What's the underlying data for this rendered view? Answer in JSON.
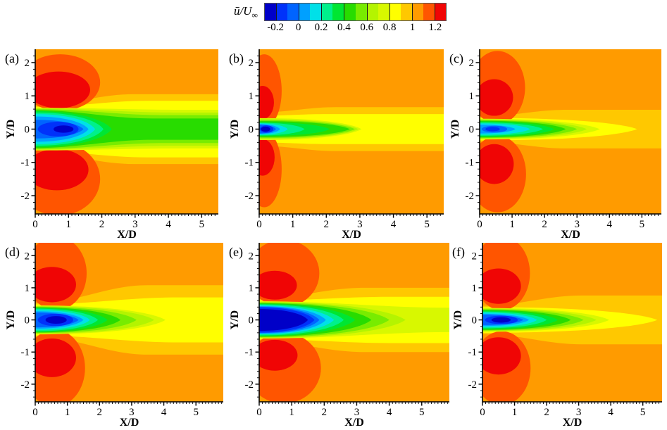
{
  "chart_data": {
    "type": "contour",
    "description_label": "mean streamwise velocity contour panels",
    "colorbar": {
      "label_main": "ū/U",
      "label_sub": "∞",
      "range": [
        -0.3,
        1.3
      ],
      "tick_values": [
        -0.2,
        0,
        0.2,
        0.4,
        0.6,
        0.8,
        1,
        1.2
      ],
      "tick_labels": [
        "-0.2",
        "0",
        "0.2",
        "0.4",
        "0.6",
        "0.8",
        "1",
        "1.2"
      ],
      "colors": [
        "#0000c8",
        "#0032fa",
        "#0064ff",
        "#00a0ff",
        "#00e0e8",
        "#00f08c",
        "#00e632",
        "#28dc00",
        "#78ec00",
        "#b4f400",
        "#d8f800",
        "#ffff00",
        "#ffc800",
        "#ff9b00",
        "#ff5500",
        "#f00505"
      ]
    },
    "axes": {
      "xlabel": "X/D",
      "ylabel": "Y/D",
      "xticks": [
        0,
        1,
        2,
        3,
        4,
        5
      ],
      "yticks": [
        -2,
        -1,
        0,
        1,
        2
      ],
      "yrange": [
        -2.55,
        2.4
      ],
      "x_minor_step": 0.1,
      "y_minor_step": 0.2
    },
    "panels": [
      {
        "label": "(a)",
        "xmax": 5.5,
        "blobs": [
          [
            14,
            0.75,
            1.4,
            1.2,
            0.85
          ],
          [
            14,
            0.7,
            -1.5,
            1.25,
            1.1
          ],
          [
            15,
            0.7,
            1.18,
            0.95,
            0.55
          ],
          [
            15,
            0.65,
            -1.22,
            0.95,
            0.62
          ]
        ],
        "wake": [
          [
            12,
            0,
            0.72,
            2.2,
            1.05
          ],
          [
            11,
            0,
            0.66,
            2.5,
            0.85
          ],
          [
            10,
            0,
            0.64,
            3.3,
            0.58
          ],
          [
            9,
            0,
            0.62,
            3.1,
            0.5
          ],
          [
            8,
            0,
            0.6,
            2.9,
            0.42
          ],
          [
            7,
            0,
            0.57,
            2.6,
            0.32
          ],
          [
            6,
            0,
            0.54,
            2.3,
            null
          ],
          [
            5,
            0,
            0.5,
            2.05,
            null
          ],
          [
            4,
            0,
            0.45,
            1.8,
            null
          ],
          [
            3,
            0,
            0.38,
            1.6,
            null
          ],
          [
            2,
            0,
            0.28,
            1.45,
            null
          ],
          [
            1,
            0.08,
            0.22,
            1.3,
            null
          ],
          [
            0,
            0.55,
            0.11,
            1.15,
            null
          ]
        ]
      },
      {
        "label": "(b)",
        "xmax": 5.5,
        "blobs": [
          [
            14,
            0.15,
            1.15,
            0.52,
            1.1
          ],
          [
            14,
            0.15,
            -1.2,
            0.52,
            1.15
          ],
          [
            15,
            0.1,
            0.8,
            0.34,
            0.5
          ],
          [
            15,
            0.1,
            -0.85,
            0.36,
            0.55
          ]
        ],
        "wake": [
          [
            12,
            0,
            0.5,
            1.7,
            0.66
          ],
          [
            11,
            0,
            0.4,
            1.5,
            0.45
          ],
          [
            10,
            0,
            0.33,
            3.05,
            null
          ],
          [
            9,
            0,
            0.3,
            2.95,
            null
          ],
          [
            8,
            0,
            0.27,
            2.85,
            null
          ],
          [
            7,
            0,
            0.24,
            2.7,
            null
          ],
          [
            6,
            0,
            0.21,
            2.1,
            null
          ],
          [
            5,
            0,
            0.19,
            1.35,
            null
          ],
          [
            4,
            0,
            0.17,
            0.85,
            null
          ],
          [
            3,
            0,
            0.15,
            0.62,
            null
          ],
          [
            2,
            0,
            0.13,
            0.5,
            null
          ],
          [
            1,
            0.02,
            0.11,
            0.42,
            null
          ],
          [
            0,
            0.05,
            0.075,
            0.33,
            null
          ]
        ]
      },
      {
        "label": "(c)",
        "xmax": 5.6,
        "blobs": [
          [
            14,
            0.55,
            1.25,
            0.85,
            1.1
          ],
          [
            14,
            0.55,
            -1.35,
            0.88,
            1.15
          ],
          [
            15,
            0.45,
            0.95,
            0.58,
            0.55
          ],
          [
            15,
            0.45,
            -1.05,
            0.6,
            0.6
          ]
        ],
        "wake": [
          [
            12,
            0,
            0.38,
            2.0,
            0.58
          ],
          [
            11,
            0,
            0.34,
            4.85,
            null
          ],
          [
            10,
            0,
            0.31,
            3.7,
            null
          ],
          [
            9,
            0,
            0.29,
            3.3,
            null
          ],
          [
            8,
            0,
            0.27,
            3.0,
            null
          ],
          [
            7,
            0,
            0.25,
            2.65,
            null
          ],
          [
            6,
            0,
            0.23,
            2.3,
            null
          ],
          [
            5,
            0,
            0.2,
            1.95,
            null
          ],
          [
            4,
            0,
            0.17,
            1.55,
            null
          ],
          [
            3,
            0,
            0.13,
            1.1,
            null
          ],
          [
            2,
            0.06,
            0.1,
            0.85,
            null
          ],
          [
            1,
            0.18,
            0.065,
            0.62,
            null
          ]
        ]
      },
      {
        "label": "(d)",
        "xmax": 5.85,
        "blobs": [
          [
            14,
            0.65,
            1.45,
            0.95,
            1.15
          ],
          [
            14,
            0.6,
            -1.5,
            0.95,
            1.2
          ],
          [
            15,
            0.52,
            1.1,
            0.75,
            0.55
          ],
          [
            15,
            0.52,
            -1.18,
            0.75,
            0.6
          ]
        ],
        "wake": [
          [
            12,
            0,
            0.52,
            2.6,
            1.08
          ],
          [
            11,
            0,
            0.48,
            3.3,
            0.7
          ],
          [
            10,
            0,
            0.45,
            4.05,
            null
          ],
          [
            9,
            0,
            0.43,
            3.7,
            null
          ],
          [
            8,
            0,
            0.41,
            3.15,
            null
          ],
          [
            7,
            0,
            0.39,
            2.65,
            null
          ],
          [
            6,
            0,
            0.37,
            2.25,
            null
          ],
          [
            5,
            0,
            0.35,
            1.95,
            null
          ],
          [
            4,
            0,
            0.31,
            1.7,
            null
          ],
          [
            3,
            0,
            0.27,
            1.5,
            null
          ],
          [
            2,
            0,
            0.23,
            1.35,
            null
          ],
          [
            1,
            0.08,
            0.19,
            1.18,
            null
          ],
          [
            0,
            0.32,
            0.12,
            0.98,
            null
          ]
        ]
      },
      {
        "label": "(e)",
        "xmax": 5.85,
        "blobs": [
          [
            14,
            0.75,
            1.45,
            1.1,
            1.05
          ],
          [
            14,
            0.75,
            -1.5,
            1.15,
            1.1
          ],
          [
            15,
            0.48,
            1.08,
            0.68,
            0.45
          ],
          [
            15,
            0.48,
            -1.1,
            0.7,
            0.48
          ]
        ],
        "wake": [
          [
            12,
            0,
            0.66,
            2.4,
            1.0
          ],
          [
            11,
            0,
            0.6,
            3.0,
            0.72
          ],
          [
            10,
            0,
            0.58,
            4.5,
            0.38
          ],
          [
            9,
            0,
            0.56,
            4.5,
            null
          ],
          [
            8,
            0,
            0.54,
            4.0,
            null
          ],
          [
            7,
            0,
            0.52,
            3.45,
            null
          ],
          [
            6,
            0,
            0.5,
            2.95,
            null
          ],
          [
            5,
            0,
            0.48,
            2.6,
            null
          ],
          [
            4,
            0,
            0.45,
            2.3,
            null
          ],
          [
            3,
            0,
            0.43,
            2.05,
            null
          ],
          [
            2,
            0,
            0.41,
            1.85,
            null
          ],
          [
            1,
            0,
            0.39,
            1.7,
            null
          ],
          [
            0,
            0,
            0.34,
            1.5,
            null
          ]
        ]
      },
      {
        "label": "(f)",
        "xmax": 5.6,
        "blobs": [
          [
            14,
            0.6,
            1.45,
            0.88,
            1.15
          ],
          [
            14,
            0.6,
            -1.5,
            0.9,
            1.15
          ],
          [
            15,
            0.5,
            1.05,
            0.7,
            0.55
          ],
          [
            15,
            0.5,
            -1.12,
            0.7,
            0.58
          ]
        ],
        "wake": [
          [
            12,
            0,
            0.44,
            2.3,
            0.76
          ],
          [
            11,
            0,
            0.4,
            5.45,
            null
          ],
          [
            10,
            0,
            0.37,
            3.95,
            null
          ],
          [
            9,
            0,
            0.35,
            3.55,
            null
          ],
          [
            8,
            0,
            0.33,
            3.15,
            null
          ],
          [
            7,
            0,
            0.31,
            2.75,
            null
          ],
          [
            6,
            0,
            0.29,
            2.35,
            null
          ],
          [
            5,
            0,
            0.26,
            2.0,
            null
          ],
          [
            4,
            0,
            0.23,
            1.7,
            null
          ],
          [
            3,
            0,
            0.19,
            1.45,
            null
          ],
          [
            2,
            0,
            0.16,
            1.27,
            null
          ],
          [
            1,
            0.08,
            0.13,
            1.1,
            null
          ],
          [
            0,
            0.28,
            0.085,
            0.88,
            null
          ]
        ]
      }
    ]
  }
}
